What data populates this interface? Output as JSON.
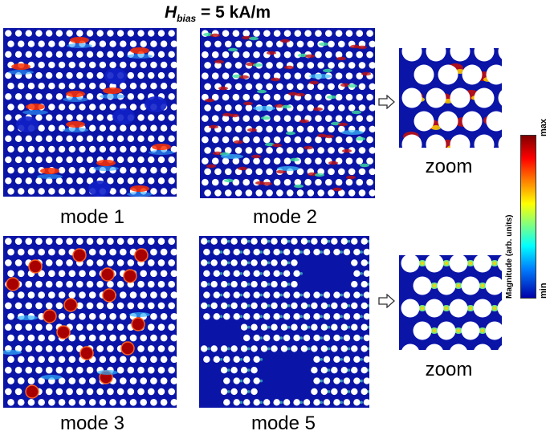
{
  "title": {
    "symbol": "H",
    "subscript": "bias",
    "value": " = 5 kA/m"
  },
  "panels": [
    {
      "caption": "mode 1"
    },
    {
      "caption": "mode 2"
    },
    {
      "caption": "mode 3"
    },
    {
      "caption": "mode 5"
    },
    {
      "caption": "zoom"
    },
    {
      "caption": "zoom"
    }
  ],
  "colorbar": {
    "max_label": "max",
    "min_label": "min",
    "title": "Magnitude (arb. units)"
  },
  "colors": {
    "background_field": "#0a14a6",
    "hole": "#ffffff",
    "hotspot": "#a80000"
  }
}
